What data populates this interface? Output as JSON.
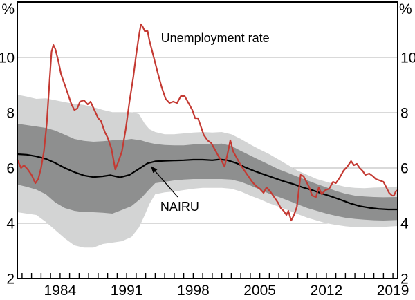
{
  "chart_data": {
    "type": "line",
    "unit_label": "%",
    "x_domain": [
      1979.5,
      2019.5
    ],
    "y_domain": [
      2,
      12
    ],
    "y_ticks": [
      2,
      4,
      6,
      8,
      10
    ],
    "gridlines": [
      4,
      6,
      8,
      10
    ],
    "x_tick_labels": [
      1984,
      1991,
      1998,
      2005,
      2012,
      2019
    ],
    "x_minor_tick_step": 1,
    "legend_position": "annotations-inline",
    "grid": "horizontal-only",
    "colors": {
      "unemployment": "#c43a33",
      "nairu": "#000000",
      "band70": "#8e8f8f",
      "band90": "#d3d4d4",
      "gridline": "#b3b3b3",
      "axis": "#000000"
    },
    "series": {
      "unemployment": {
        "label": "Unemployment rate",
        "points": [
          [
            1979.5,
            6.3
          ],
          [
            1979.9,
            6.0
          ],
          [
            1980.2,
            6.1
          ],
          [
            1980.6,
            5.95
          ],
          [
            1981.0,
            5.75
          ],
          [
            1981.4,
            5.45
          ],
          [
            1981.7,
            5.6
          ],
          [
            1982.0,
            6.0
          ],
          [
            1982.3,
            6.6
          ],
          [
            1982.6,
            7.6
          ],
          [
            1982.9,
            9.2
          ],
          [
            1983.1,
            10.2
          ],
          [
            1983.3,
            10.45
          ],
          [
            1983.5,
            10.3
          ],
          [
            1983.8,
            9.9
          ],
          [
            1984.1,
            9.4
          ],
          [
            1984.4,
            9.1
          ],
          [
            1984.8,
            8.7
          ],
          [
            1985.2,
            8.3
          ],
          [
            1985.5,
            8.1
          ],
          [
            1985.8,
            8.15
          ],
          [
            1986.1,
            8.4
          ],
          [
            1986.5,
            8.45
          ],
          [
            1986.9,
            8.3
          ],
          [
            1987.2,
            8.4
          ],
          [
            1987.6,
            8.1
          ],
          [
            1988.0,
            7.8
          ],
          [
            1988.3,
            7.7
          ],
          [
            1988.7,
            7.3
          ],
          [
            1989.0,
            7.1
          ],
          [
            1989.4,
            6.7
          ],
          [
            1989.8,
            5.95
          ],
          [
            1990.1,
            6.2
          ],
          [
            1990.5,
            6.6
          ],
          [
            1990.9,
            7.4
          ],
          [
            1991.3,
            8.4
          ],
          [
            1991.7,
            9.3
          ],
          [
            1992.0,
            10.1
          ],
          [
            1992.3,
            10.8
          ],
          [
            1992.5,
            11.2
          ],
          [
            1992.7,
            11.1
          ],
          [
            1992.9,
            10.95
          ],
          [
            1993.2,
            10.95
          ],
          [
            1993.4,
            10.6
          ],
          [
            1993.7,
            10.2
          ],
          [
            1994.0,
            9.8
          ],
          [
            1994.3,
            9.4
          ],
          [
            1994.7,
            8.9
          ],
          [
            1995.1,
            8.5
          ],
          [
            1995.5,
            8.35
          ],
          [
            1995.9,
            8.4
          ],
          [
            1996.3,
            8.35
          ],
          [
            1996.7,
            8.6
          ],
          [
            1997.1,
            8.6
          ],
          [
            1997.5,
            8.35
          ],
          [
            1997.9,
            8.1
          ],
          [
            1998.2,
            7.8
          ],
          [
            1998.5,
            7.8
          ],
          [
            1998.8,
            7.5
          ],
          [
            1999.1,
            7.2
          ],
          [
            1999.5,
            7.0
          ],
          [
            1999.9,
            6.9
          ],
          [
            2000.3,
            6.65
          ],
          [
            2000.7,
            6.4
          ],
          [
            2001.0,
            6.25
          ],
          [
            2001.3,
            6.05
          ],
          [
            2001.6,
            6.5
          ],
          [
            2001.9,
            7.0
          ],
          [
            2002.2,
            6.6
          ],
          [
            2002.6,
            6.35
          ],
          [
            2003.0,
            6.1
          ],
          [
            2003.4,
            5.9
          ],
          [
            2003.8,
            5.7
          ],
          [
            2004.2,
            5.5
          ],
          [
            2004.6,
            5.35
          ],
          [
            2005.0,
            5.25
          ],
          [
            2005.4,
            5.1
          ],
          [
            2005.7,
            5.3
          ],
          [
            2006.1,
            5.15
          ],
          [
            2006.5,
            4.95
          ],
          [
            2006.9,
            4.75
          ],
          [
            2007.2,
            4.55
          ],
          [
            2007.5,
            4.45
          ],
          [
            2007.8,
            4.3
          ],
          [
            2008.0,
            4.45
          ],
          [
            2008.3,
            4.1
          ],
          [
            2008.6,
            4.3
          ],
          [
            2008.9,
            4.6
          ],
          [
            2009.1,
            5.2
          ],
          [
            2009.3,
            5.75
          ],
          [
            2009.6,
            5.7
          ],
          [
            2009.9,
            5.5
          ],
          [
            2010.2,
            5.3
          ],
          [
            2010.5,
            5.0
          ],
          [
            2010.9,
            4.95
          ],
          [
            2011.2,
            5.3
          ],
          [
            2011.5,
            5.05
          ],
          [
            2011.9,
            5.2
          ],
          [
            2012.3,
            5.25
          ],
          [
            2012.7,
            5.5
          ],
          [
            2013.0,
            5.45
          ],
          [
            2013.4,
            5.65
          ],
          [
            2013.8,
            5.9
          ],
          [
            2014.2,
            6.05
          ],
          [
            2014.6,
            6.25
          ],
          [
            2014.9,
            6.1
          ],
          [
            2015.2,
            6.15
          ],
          [
            2015.5,
            6.0
          ],
          [
            2015.8,
            5.9
          ],
          [
            2016.1,
            5.75
          ],
          [
            2016.5,
            5.8
          ],
          [
            2016.9,
            5.7
          ],
          [
            2017.2,
            5.6
          ],
          [
            2017.6,
            5.55
          ],
          [
            2018.0,
            5.5
          ],
          [
            2018.3,
            5.3
          ],
          [
            2018.6,
            5.1
          ],
          [
            2018.9,
            5.0
          ],
          [
            2019.1,
            5.0
          ],
          [
            2019.3,
            5.15
          ],
          [
            2019.5,
            5.2
          ]
        ]
      },
      "nairu": {
        "label": "NAIRU",
        "points": [
          [
            1979.5,
            6.5
          ],
          [
            1980.5,
            6.48
          ],
          [
            1981.5,
            6.42
          ],
          [
            1982.5,
            6.33
          ],
          [
            1983.5,
            6.18
          ],
          [
            1984.5,
            6.0
          ],
          [
            1985.5,
            5.85
          ],
          [
            1986.5,
            5.73
          ],
          [
            1987.5,
            5.67
          ],
          [
            1988.5,
            5.7
          ],
          [
            1989.3,
            5.74
          ],
          [
            1990.3,
            5.66
          ],
          [
            1991.3,
            5.75
          ],
          [
            1992.3,
            5.97
          ],
          [
            1993.2,
            6.17
          ],
          [
            1994.0,
            6.24
          ],
          [
            1995.0,
            6.26
          ],
          [
            1996.0,
            6.27
          ],
          [
            1997.0,
            6.28
          ],
          [
            1998.0,
            6.3
          ],
          [
            1999.0,
            6.3
          ],
          [
            2000.0,
            6.28
          ],
          [
            2000.8,
            6.31
          ],
          [
            2001.6,
            6.28
          ],
          [
            2002.5,
            6.18
          ],
          [
            2003.5,
            6.02
          ],
          [
            2004.5,
            5.88
          ],
          [
            2005.5,
            5.76
          ],
          [
            2006.5,
            5.64
          ],
          [
            2007.5,
            5.52
          ],
          [
            2008.5,
            5.42
          ],
          [
            2009.5,
            5.3
          ],
          [
            2010.5,
            5.2
          ],
          [
            2011.5,
            5.08
          ],
          [
            2012.5,
            4.97
          ],
          [
            2013.5,
            4.85
          ],
          [
            2014.5,
            4.72
          ],
          [
            2015.5,
            4.62
          ],
          [
            2016.5,
            4.56
          ],
          [
            2017.5,
            4.52
          ],
          [
            2018.5,
            4.5
          ],
          [
            2019.5,
            4.5
          ]
        ]
      },
      "band70": {
        "points": [
          [
            1979.5,
            5.4,
            7.6
          ],
          [
            1980.5,
            5.32,
            7.55
          ],
          [
            1981.5,
            5.22,
            7.5
          ],
          [
            1982.5,
            5.05,
            7.45
          ],
          [
            1983.5,
            4.75,
            7.35
          ],
          [
            1984.5,
            4.55,
            7.2
          ],
          [
            1985.5,
            4.45,
            7.05
          ],
          [
            1986.5,
            4.4,
            6.98
          ],
          [
            1987.5,
            4.4,
            6.95
          ],
          [
            1988.5,
            4.38,
            6.97
          ],
          [
            1989.5,
            4.35,
            7.0
          ],
          [
            1990.5,
            4.48,
            7.0
          ],
          [
            1991.5,
            4.62,
            7.05
          ],
          [
            1992.5,
            4.9,
            7.0
          ],
          [
            1993.3,
            5.2,
            6.92
          ],
          [
            1994.0,
            5.45,
            6.87
          ],
          [
            1995.0,
            5.5,
            6.83
          ],
          [
            1996.0,
            5.55,
            6.82
          ],
          [
            1997.0,
            5.58,
            6.82
          ],
          [
            1998.0,
            5.6,
            6.85
          ],
          [
            1999.0,
            5.6,
            6.85
          ],
          [
            2000.0,
            5.6,
            6.86
          ],
          [
            2001.0,
            5.6,
            6.88
          ],
          [
            2002.0,
            5.58,
            6.8
          ],
          [
            2003.0,
            5.5,
            6.62
          ],
          [
            2004.0,
            5.37,
            6.45
          ],
          [
            2005.0,
            5.22,
            6.28
          ],
          [
            2006.0,
            5.07,
            6.12
          ],
          [
            2007.0,
            4.95,
            5.95
          ],
          [
            2008.0,
            4.82,
            5.82
          ],
          [
            2009.0,
            4.68,
            5.68
          ],
          [
            2010.0,
            4.55,
            5.55
          ],
          [
            2011.0,
            4.45,
            5.42
          ],
          [
            2012.0,
            4.35,
            5.3
          ],
          [
            2013.0,
            4.27,
            5.17
          ],
          [
            2014.0,
            4.2,
            5.07
          ],
          [
            2015.0,
            4.16,
            5.0
          ],
          [
            2016.0,
            4.13,
            4.97
          ],
          [
            2017.0,
            4.11,
            4.95
          ],
          [
            2018.0,
            4.1,
            4.94
          ],
          [
            2019.5,
            4.12,
            4.95
          ]
        ]
      },
      "band90": {
        "points": [
          [
            1979.5,
            4.4,
            8.65
          ],
          [
            1980.5,
            4.35,
            8.58
          ],
          [
            1981.5,
            4.3,
            8.5
          ],
          [
            1982.5,
            4.05,
            8.52
          ],
          [
            1983.5,
            3.75,
            8.45
          ],
          [
            1984.5,
            3.45,
            8.38
          ],
          [
            1985.5,
            3.2,
            8.32
          ],
          [
            1986.5,
            3.12,
            8.28
          ],
          [
            1987.5,
            3.12,
            8.2
          ],
          [
            1988.5,
            3.25,
            8.1
          ],
          [
            1989.5,
            3.3,
            8.02
          ],
          [
            1990.5,
            3.35,
            8.02
          ],
          [
            1991.5,
            3.5,
            8.02
          ],
          [
            1992.3,
            3.85,
            7.95
          ],
          [
            1992.9,
            4.3,
            7.6
          ],
          [
            1993.4,
            4.7,
            7.4
          ],
          [
            1994.0,
            5.05,
            7.3
          ],
          [
            1995.0,
            5.12,
            7.22
          ],
          [
            1996.0,
            5.15,
            7.22
          ],
          [
            1997.0,
            5.2,
            7.25
          ],
          [
            1998.0,
            5.25,
            7.28
          ],
          [
            1999.0,
            5.28,
            7.3
          ],
          [
            2000.0,
            5.28,
            7.28
          ],
          [
            2001.0,
            5.28,
            7.3
          ],
          [
            2002.0,
            5.25,
            7.22
          ],
          [
            2003.0,
            5.15,
            7.05
          ],
          [
            2004.0,
            5.0,
            6.85
          ],
          [
            2005.0,
            4.87,
            6.67
          ],
          [
            2006.0,
            4.72,
            6.5
          ],
          [
            2007.0,
            4.6,
            6.3
          ],
          [
            2008.0,
            4.47,
            6.1
          ],
          [
            2009.0,
            4.33,
            5.9
          ],
          [
            2010.0,
            4.2,
            5.75
          ],
          [
            2011.0,
            4.1,
            5.6
          ],
          [
            2012.0,
            4.0,
            5.5
          ],
          [
            2013.0,
            3.94,
            5.4
          ],
          [
            2014.0,
            3.89,
            5.32
          ],
          [
            2015.0,
            3.86,
            5.28
          ],
          [
            2016.0,
            3.85,
            5.27
          ],
          [
            2017.0,
            3.85,
            5.29
          ],
          [
            2018.0,
            3.87,
            5.3
          ],
          [
            2019.5,
            3.9,
            5.33
          ]
        ]
      }
    },
    "annotations": {
      "unemployment_label": {
        "text": "Unemployment rate",
        "x": 1994.6,
        "y": 10.55,
        "anchor": "start"
      },
      "nairu_label": {
        "text": "NAIRU",
        "x": 1994.55,
        "y": 4.45,
        "anchor": "start"
      },
      "nairu_arrow": {
        "from": [
          1996.37,
          4.95
        ],
        "to": [
          1993.58,
          6.05
        ]
      }
    }
  }
}
